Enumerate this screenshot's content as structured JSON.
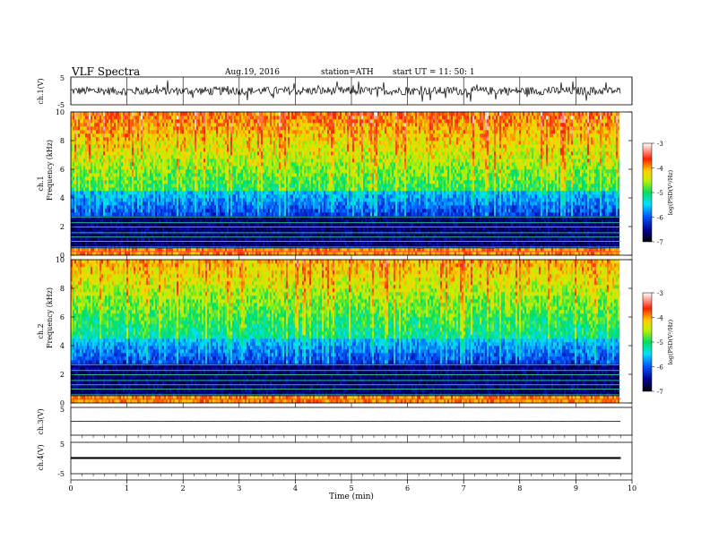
{
  "header": {
    "title": "VLF Spectra",
    "date": "Aug.19, 2016",
    "station": "station=ATH",
    "start": "start UT = 11: 50: 1"
  },
  "chart_data": [
    {
      "type": "line",
      "name": "ch1-waveform",
      "ylabel": "ch.1(V)",
      "ylim": [
        -5,
        5
      ],
      "yticks": [
        "5",
        "-5"
      ],
      "xlim": [
        0,
        10
      ],
      "level_approx": 0,
      "amplitude_approx": 2.5
    },
    {
      "type": "heatmap",
      "name": "ch1-spectrogram",
      "ylabel_channel": "ch.1",
      "ylabel": "Frequency (kHz)",
      "ylim": [
        0,
        10
      ],
      "yticks": [
        "0",
        "2",
        "4",
        "6",
        "8",
        "10"
      ],
      "xlim": [
        0,
        9.8
      ],
      "colorbar": {
        "label": "log(PSD(V²/Hz)",
        "range": [
          -7,
          -3
        ],
        "ticks": [
          "-3",
          "-4",
          "-5",
          "-6",
          "-7"
        ]
      }
    },
    {
      "type": "heatmap",
      "name": "ch2-spectrogram",
      "ylabel_channel": "ch.2",
      "ylabel": "Frequency (kHz)",
      "ylim": [
        0,
        10
      ],
      "yticks": [
        "0",
        "2",
        "4",
        "6",
        "8",
        "10"
      ],
      "xlim": [
        0,
        9.8
      ],
      "colorbar": {
        "label": "log(PSD(V²/Hz)",
        "range": [
          -7,
          -3
        ],
        "ticks": [
          "-3",
          "-4",
          "-5",
          "-6",
          "-7"
        ]
      }
    },
    {
      "type": "line",
      "name": "ch3-waveform",
      "ylabel": "ch.3(V)",
      "ylim": [
        -5,
        5
      ],
      "yticks": [
        "5",
        "-5"
      ],
      "xlim": [
        0,
        10
      ],
      "level_approx": 0,
      "amplitude_approx": 0.1
    },
    {
      "type": "line",
      "name": "ch4-waveform",
      "ylabel": "ch.4(V)",
      "ylim": [
        -5,
        5
      ],
      "yticks": [
        "5",
        "-5"
      ],
      "xlim": [
        0,
        10
      ],
      "level_approx": 0,
      "amplitude_approx": 0.3
    }
  ],
  "xaxis": {
    "label": "Time (min)",
    "range": [
      0,
      10
    ],
    "ticks": [
      "0",
      "1",
      "2",
      "3",
      "4",
      "5",
      "6",
      "7",
      "8",
      "9",
      "10"
    ]
  }
}
